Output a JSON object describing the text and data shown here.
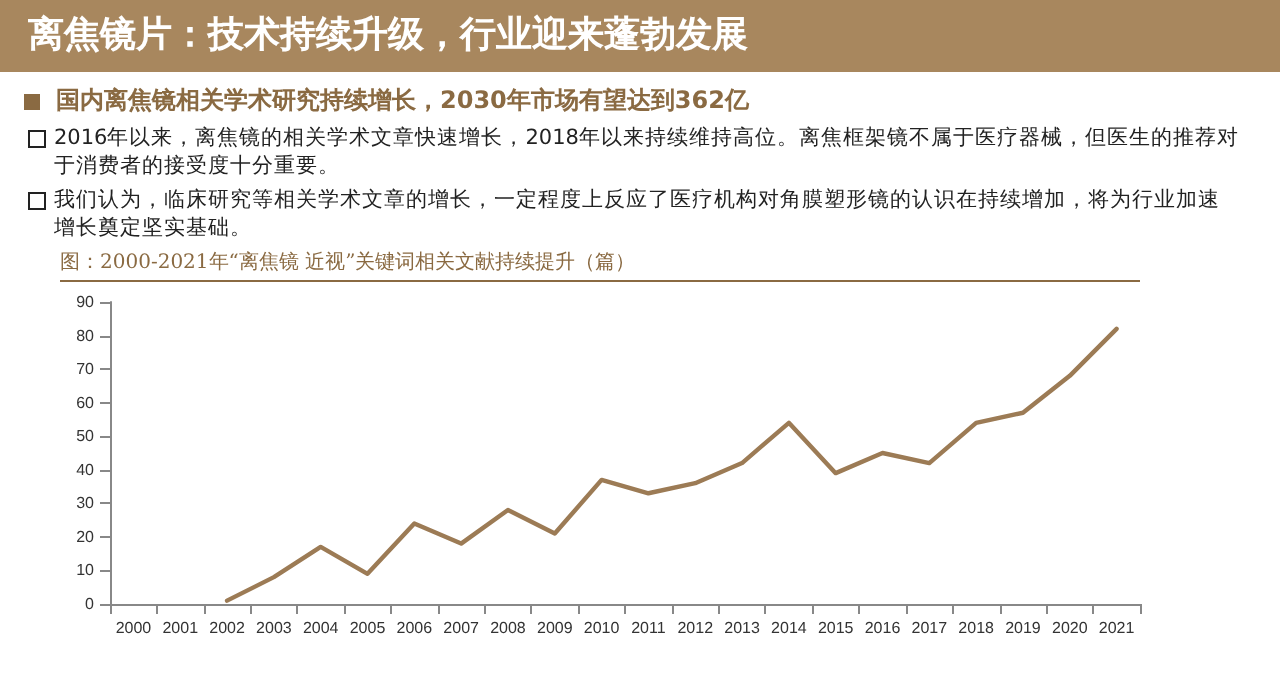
{
  "chart_data": {
    "type": "line",
    "title": "离焦镜片：技术持续升级，行业迎来蓬勃发展",
    "subtitle": "国内离焦镜相关学术研究持续增长，2030年市场有望达到362亿",
    "annotations": [
      "2016年以来，离焦镜的相关学术文章快速增长，2018年以来持续维持高位。离焦框架镜不属于医疗器械，但医生的推荐对于消费者的接受度十分重要。",
      "我们认为，临床研究等相关学术文章的增长，一定程度上反应了医疗机构对角膜塑形镜的认识在持续增加，将为行业加速增长奠定坚实基础。",
      "图：2000-2021年“离焦镜 近视”关键词相关文献持续提升（篇）"
    ],
    "categories": [
      "2000",
      "2001",
      "2002",
      "2003",
      "2004",
      "2005",
      "2006",
      "2007",
      "2008",
      "2009",
      "2010",
      "2011",
      "2012",
      "2013",
      "2014",
      "2015",
      "2016",
      "2017",
      "2018",
      "2019",
      "2020",
      "2021"
    ],
    "series": [
      {
        "color": "#9c7b55",
        "values": [
          null,
          null,
          1,
          8,
          17,
          9,
          24,
          18,
          28,
          21,
          37,
          33,
          36,
          42,
          54,
          39,
          45,
          42,
          54,
          57,
          68,
          82
        ]
      }
    ],
    "ylim": [
      0,
      90
    ],
    "yticks": [
      0,
      10,
      20,
      30,
      40,
      50,
      60,
      70,
      80,
      90
    ],
    "grid": false,
    "marker": "none",
    "line_style": "solid"
  }
}
